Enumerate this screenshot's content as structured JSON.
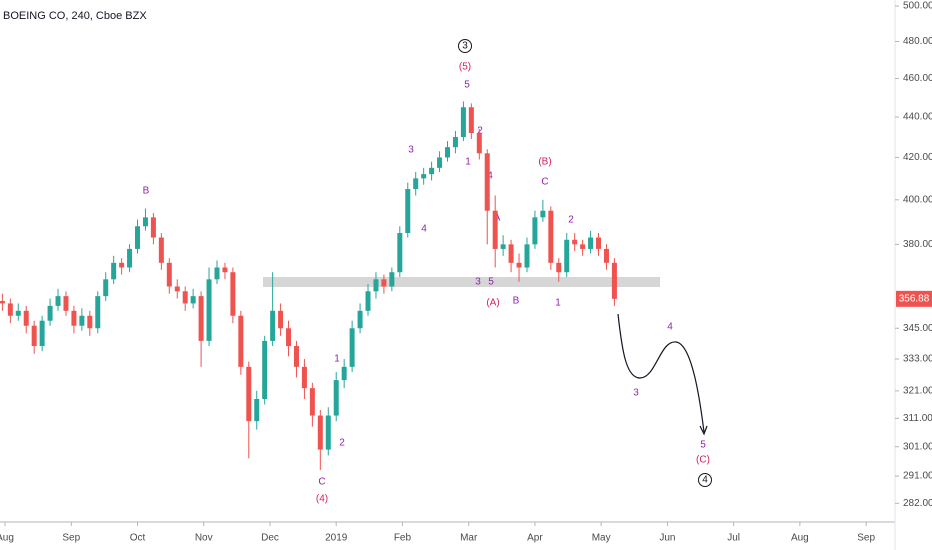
{
  "chart_data": {
    "type": "candlestick",
    "title": "BOEING CO, 240, Cboe BZX",
    "log_scale": true,
    "grid": false,
    "up_color": "#26a69a",
    "down_color": "#ef5350",
    "x": [
      2018.58,
      2018.59,
      2018.6,
      2018.61,
      2018.62,
      2018.63,
      2018.64,
      2018.65,
      2018.66,
      2018.67,
      2018.68,
      2018.69,
      2018.7,
      2018.71,
      2018.72,
      2018.73,
      2018.74,
      2018.75,
      2018.76,
      2018.77,
      2018.78,
      2018.79,
      2018.8,
      2018.81,
      2018.82,
      2018.83,
      2018.84,
      2018.85,
      2018.86,
      2018.87,
      2018.88,
      2018.89,
      2018.9,
      2018.91,
      2018.92,
      2018.93,
      2018.94,
      2018.95,
      2018.96,
      2018.97,
      2018.98,
      2018.99,
      2019.0,
      2019.01,
      2019.02,
      2019.03,
      2019.04,
      2019.05,
      2019.06,
      2019.07,
      2019.08,
      2019.09,
      2019.1,
      2019.11,
      2019.12,
      2019.13,
      2019.14,
      2019.15,
      2019.16,
      2019.17,
      2019.18,
      2019.19,
      2019.2,
      2019.21,
      2019.22,
      2019.23,
      2019.24,
      2019.25,
      2019.26,
      2019.27,
      2019.28,
      2019.29,
      2019.3,
      2019.31,
      2019.32,
      2019.33,
      2019.34,
      2019.35
    ],
    "open": [
      356,
      355,
      350,
      352,
      346,
      338,
      348,
      354,
      358,
      352,
      346,
      350,
      345,
      358,
      365,
      372,
      370,
      378,
      388,
      392,
      383,
      372,
      362,
      360,
      355,
      358,
      340,
      365,
      370,
      368,
      350,
      330,
      310,
      318,
      340,
      352,
      345,
      338,
      330,
      322,
      312,
      300,
      312,
      325,
      330,
      345,
      352,
      360,
      365,
      362,
      368,
      385,
      405,
      410,
      412,
      415,
      420,
      425,
      430,
      445,
      432,
      422,
      395,
      378,
      380,
      372,
      370,
      380,
      392,
      395,
      372,
      368,
      382,
      380,
      378,
      383,
      378,
      372
    ],
    "high": [
      359,
      357,
      355,
      354,
      348,
      350,
      357,
      361,
      360,
      354,
      353,
      352,
      360,
      368,
      375,
      374,
      380,
      391,
      396,
      394,
      385,
      374,
      365,
      362,
      361,
      360,
      370,
      373,
      372,
      370,
      352,
      332,
      321,
      342,
      368,
      355,
      348,
      340,
      333,
      324,
      314,
      315,
      328,
      333,
      348,
      355,
      363,
      368,
      367,
      370,
      388,
      408,
      413,
      415,
      418,
      423,
      428,
      433,
      448,
      447,
      434,
      424,
      402,
      384,
      382,
      376,
      383,
      395,
      400,
      397,
      374,
      385,
      385,
      382,
      386,
      385,
      380,
      374
    ],
    "low": [
      352,
      347,
      348,
      343,
      335,
      336,
      346,
      352,
      350,
      343,
      344,
      342,
      343,
      356,
      363,
      367,
      368,
      376,
      386,
      380,
      369,
      359,
      357,
      352,
      353,
      330,
      338,
      363,
      365,
      347,
      327,
      297,
      307,
      316,
      338,
      342,
      334,
      326,
      318,
      308,
      293,
      298,
      310,
      322,
      328,
      343,
      350,
      357,
      359,
      360,
      366,
      383,
      402,
      407,
      409,
      413,
      418,
      422,
      428,
      429,
      419,
      380,
      370,
      375,
      368,
      364,
      368,
      378,
      390,
      369,
      364,
      366,
      377,
      375,
      376,
      375,
      369,
      354
    ],
    "close": [
      355,
      350,
      352,
      346,
      338,
      348,
      354,
      358,
      352,
      346,
      350,
      345,
      358,
      365,
      372,
      370,
      378,
      388,
      392,
      383,
      372,
      362,
      360,
      355,
      358,
      340,
      365,
      370,
      368,
      350,
      330,
      310,
      318,
      340,
      352,
      345,
      338,
      330,
      322,
      312,
      300,
      312,
      325,
      330,
      345,
      352,
      360,
      365,
      362,
      368,
      385,
      405,
      410,
      412,
      415,
      420,
      425,
      430,
      445,
      432,
      422,
      395,
      378,
      380,
      372,
      370,
      380,
      392,
      395,
      372,
      368,
      382,
      380,
      378,
      383,
      378,
      372,
      356.88
    ],
    "xlim": [
      2018.577,
      2019.703
    ],
    "xticks": [
      {
        "value": 2018.5833,
        "label": "Aug"
      },
      {
        "value": 2018.6667,
        "label": "Sep"
      },
      {
        "value": 2018.75,
        "label": "Oct"
      },
      {
        "value": 2018.8333,
        "label": "Nov"
      },
      {
        "value": 2018.9167,
        "label": "Dec"
      },
      2019,
      {
        "value": 2019.0833,
        "label": "Feb"
      },
      {
        "value": 2019.1667,
        "label": "Mar"
      },
      {
        "value": 2019.25,
        "label": "Apr"
      },
      {
        "value": 2019.3333,
        "label": "May"
      },
      {
        "value": 2019.4167,
        "label": "Jun"
      },
      {
        "value": 2019.5,
        "label": "Jul"
      },
      {
        "value": 2019.5833,
        "label": "Aug"
      },
      {
        "value": 2019.6667,
        "label": "Sep"
      }
    ],
    "ylim": [
      276,
      503.5
    ],
    "yticks": [
      {
        "value": 500,
        "label": "500.00"
      },
      {
        "value": 480,
        "label": "480.00"
      },
      {
        "value": 460,
        "label": "460.00"
      },
      {
        "value": 440,
        "label": "440.00"
      },
      {
        "value": 420,
        "label": "420.00"
      },
      {
        "value": 400,
        "label": "400.00"
      },
      {
        "value": 380,
        "label": "380.00"
      },
      {
        "value": 345,
        "label": "345.00"
      },
      {
        "value": 333,
        "label": "333.00"
      },
      {
        "value": 321,
        "label": "321.00"
      },
      {
        "value": 311,
        "label": "311.00"
      },
      {
        "value": 301,
        "label": "301.00"
      },
      {
        "value": 291,
        "label": "291.00"
      },
      {
        "value": 282,
        "label": "282.00"
      }
    ],
    "annotations": [
      "3",
      "(5)",
      "5",
      "2",
      "3",
      "1",
      "4",
      "4",
      "B",
      "(B)",
      "C",
      "A",
      "2",
      "3",
      "5",
      "(A)",
      "B",
      "1",
      "1",
      "2",
      "C",
      "(4)",
      "4",
      "3",
      "5",
      "(C)",
      "4"
    ]
  }
}
